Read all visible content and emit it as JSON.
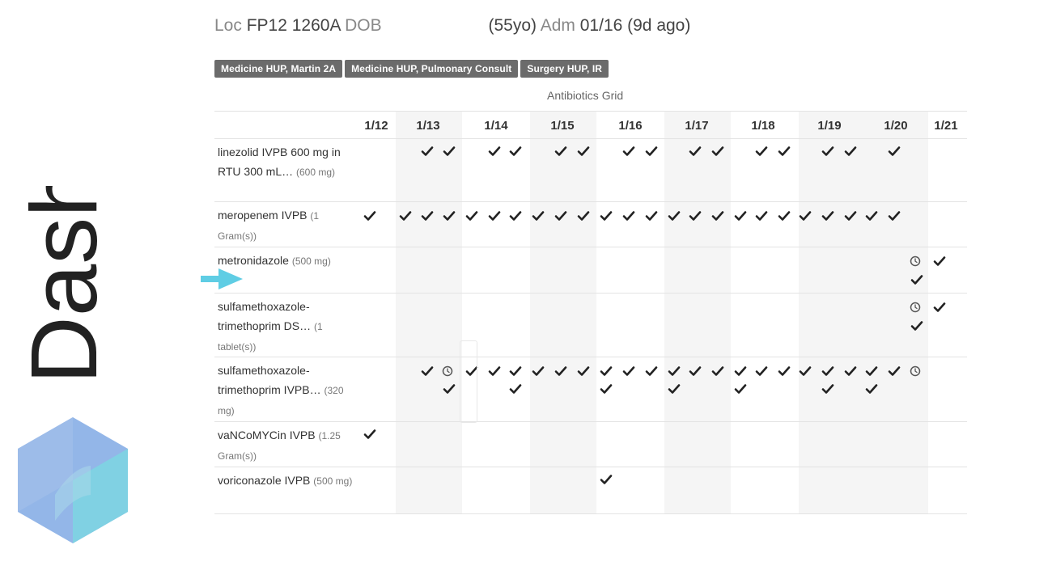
{
  "brand": {
    "word": "Dash"
  },
  "header": {
    "loc_label": "Loc",
    "loc_value": "FP12 1260A",
    "dob_label": "DOB",
    "age": "(55yo)",
    "adm_label": "Adm",
    "adm_value": "01/16 (9d ago)"
  },
  "chips": [
    "Medicine HUP, Martin 2A",
    "Medicine HUP, Pulmonary Consult",
    "Surgery HUP, IR"
  ],
  "grid": {
    "title": "Antibiotics Grid",
    "dates": [
      "1/12",
      "1/13",
      "1/14",
      "1/15",
      "1/16",
      "1/17",
      "1/18",
      "1/19",
      "1/20",
      "1/21"
    ],
    "rows": [
      {
        "name": "linezolid IVPB 600 mg in RTU 300 mL…",
        "dose": "(600 mg)"
      },
      {
        "name": "meropenem IVPB",
        "dose": "(1 Gram(s))"
      },
      {
        "name": "metronidazole",
        "dose": "(500 mg)"
      },
      {
        "name": "sulfamethoxazole-trimethoprim DS…",
        "dose": "(1 tablet(s))"
      },
      {
        "name": "sulfamethoxazole-trimethoprim IVPB…",
        "dose": "(320 mg)"
      },
      {
        "name": "vaNCoMYCin IVPB",
        "dose": "(1.25 Gram(s))"
      },
      {
        "name": "voriconazole IVPB",
        "dose": "(500 mg)"
      }
    ]
  },
  "colors": {
    "chip_bg": "#6b6b6b",
    "arrow": "#5fcde4",
    "hex_a": "#8fb3e6",
    "hex_b": "#7dd3e0"
  }
}
